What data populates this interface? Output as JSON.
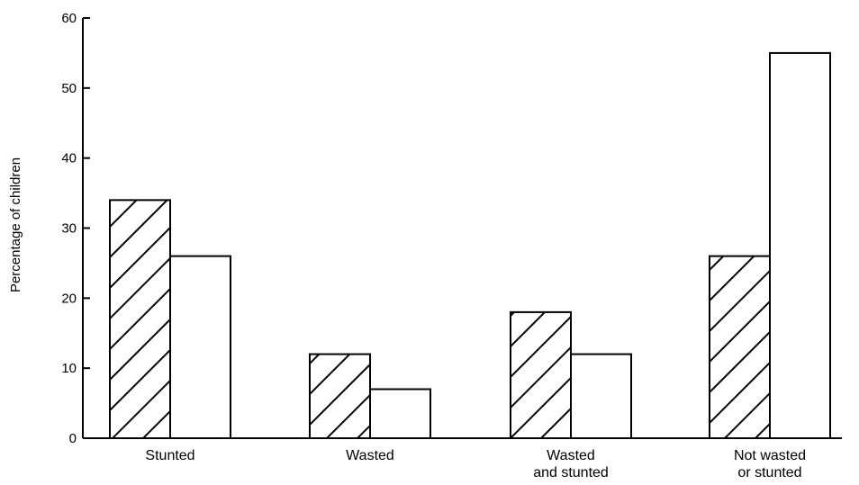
{
  "chart_data": {
    "type": "bar",
    "title": "",
    "xlabel": "",
    "ylabel": "Percentage of children",
    "ylim": [
      0,
      60
    ],
    "yticks": [
      "0",
      "10",
      "20",
      "30",
      "40",
      "50",
      "60"
    ],
    "grid": false,
    "categories": [
      [
        "Stunted"
      ],
      [
        "Wasted"
      ],
      [
        "Wasted",
        "and stunted"
      ],
      [
        "Not wasted",
        "or stunted"
      ]
    ],
    "series": [
      {
        "pattern": "hatched",
        "values": [
          34,
          12,
          18,
          26
        ]
      },
      {
        "pattern": "open",
        "values": [
          26,
          7,
          12,
          55
        ]
      }
    ]
  }
}
